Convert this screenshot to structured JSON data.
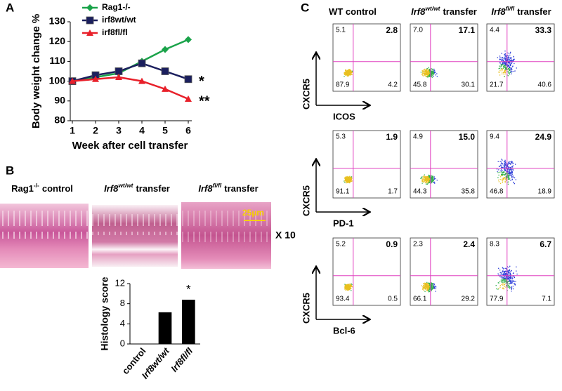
{
  "panel_labels": [
    "A",
    "B",
    "C"
  ],
  "chart_data": [
    {
      "type": "line",
      "y_label": "Body weight change %",
      "x_label": "Week after cell transfer",
      "x": [
        1,
        2,
        3,
        4,
        5,
        6
      ],
      "xlim": [
        1,
        6
      ],
      "xticks": [
        1,
        2,
        3,
        4,
        5,
        6
      ],
      "ylim": [
        80,
        130
      ],
      "yticks": [
        80,
        90,
        100,
        110,
        120,
        130
      ],
      "legend": "top-left",
      "series": [
        {
          "name": "Rag1-/-",
          "color": "#1aa34a",
          "marker": "diamond",
          "values": [
            100,
            102,
            104,
            110,
            116,
            121
          ]
        },
        {
          "name": "irf8wt/wt",
          "color": "#1b1f5e",
          "marker": "square",
          "values": [
            100,
            103,
            105,
            109,
            105,
            101
          ]
        },
        {
          "name": "irf8fl/fl",
          "color": "#e8202a",
          "marker": "triangle",
          "values": [
            100,
            101,
            102,
            100,
            96,
            91
          ]
        }
      ],
      "annotations": [
        {
          "series": 1,
          "text": "*"
        },
        {
          "series": 2,
          "text": "**"
        }
      ]
    },
    {
      "type": "bar",
      "y_label": "Histology score",
      "color": "#000000",
      "categories": [
        "control",
        "Irf8wt/wt",
        "Irf8fl/fl"
      ],
      "values": [
        0,
        6.3,
        8.8
      ],
      "ylim": [
        0,
        12
      ],
      "yticks": [
        0,
        4,
        8,
        12
      ],
      "annotations": [
        {
          "category": 2,
          "text": "*"
        }
      ]
    }
  ],
  "histology": {
    "labels": [
      {
        "base": "Rag1",
        "sup": "-/-",
        "rest": "control",
        "italic": false
      },
      {
        "base": "Irf8",
        "sup": "wt/wt",
        "rest": "transfer",
        "italic": true
      },
      {
        "base": "Irf8",
        "sup": "fl/fl",
        "rest": "transfer",
        "italic": true
      }
    ],
    "scale_bar": "25µm",
    "magnification": "X 10"
  },
  "flow": {
    "columns": [
      {
        "base": "WT control",
        "sup": "",
        "rest": "",
        "italic": false
      },
      {
        "base": "Irf8",
        "sup": "wt/wt",
        "rest": "transfer",
        "italic": true
      },
      {
        "base": "Irf8",
        "sup": "fl/fl",
        "rest": "transfer",
        "italic": true
      }
    ],
    "rows": [
      {
        "y_label": "CXCR5",
        "x_label": "ICOS",
        "quadrants": [
          [
            "5.1",
            "2.8",
            "87.9",
            "4.2"
          ],
          [
            "7.0",
            "17.1",
            "45.8",
            "30.1"
          ],
          [
            "4.4",
            "33.3",
            "21.7",
            "40.6"
          ]
        ]
      },
      {
        "y_label": "CXCR5",
        "x_label": "PD-1",
        "quadrants": [
          [
            "5.3",
            "1.9",
            "91.1",
            "1.7"
          ],
          [
            "4.9",
            "15.0",
            "44.3",
            "35.8"
          ],
          [
            "9.4",
            "24.9",
            "46.8",
            "18.9"
          ]
        ]
      },
      {
        "y_label": "CXCR5",
        "x_label": "Bcl-6",
        "quadrants": [
          [
            "5.2",
            "0.9",
            "93.4",
            "0.5"
          ],
          [
            "2.3",
            "2.4",
            "66.1",
            "29.2"
          ],
          [
            "8.3",
            "6.7",
            "77.9",
            "7.1"
          ]
        ]
      }
    ]
  }
}
